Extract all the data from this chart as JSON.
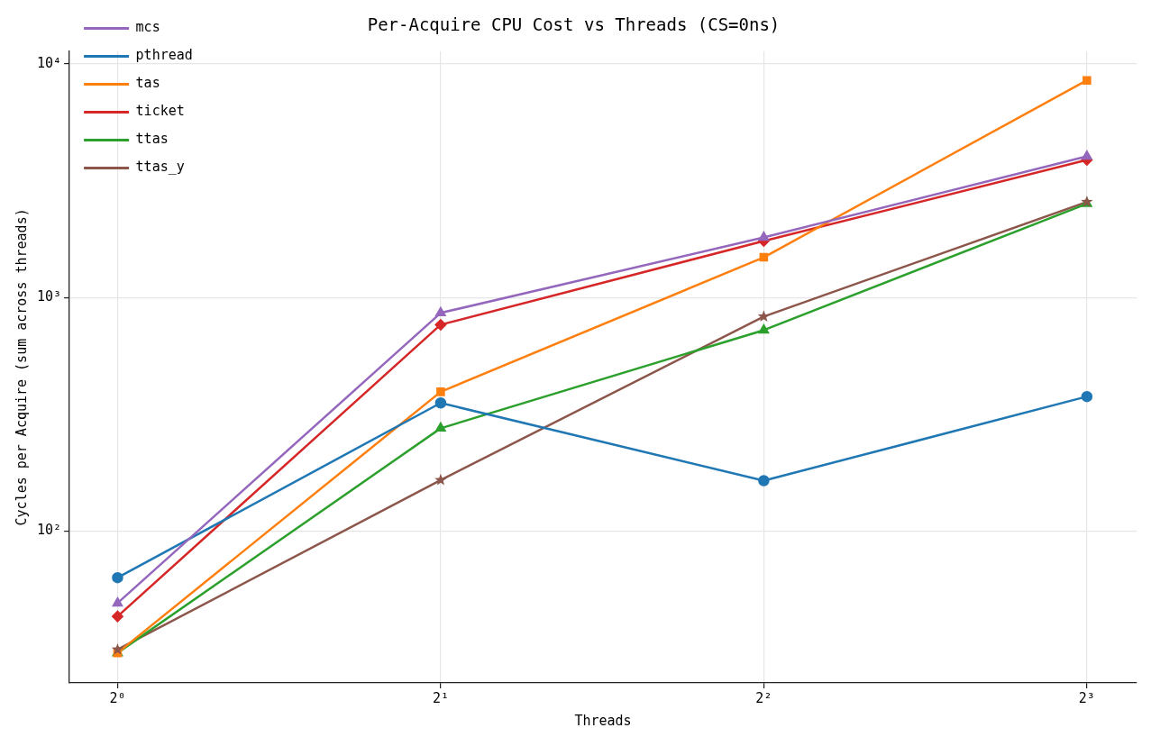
{
  "chart_data": {
    "type": "line",
    "title": "Per-Acquire CPU Cost vs Threads (CS=0ns)",
    "xlabel": "Threads",
    "ylabel": "Cycles per Acquire (sum across threads)",
    "x": [
      1,
      2,
      4,
      8
    ],
    "series": [
      {
        "name": "mcs",
        "color": "#9467bd",
        "marker": "triangle",
        "values": [
          49,
          858,
          1808,
          4020
        ]
      },
      {
        "name": "pthread",
        "color": "#1f77b4",
        "marker": "circle",
        "values": [
          63,
          353,
          164,
          376
        ]
      },
      {
        "name": "tas",
        "color": "#ff7f0e",
        "marker": "square",
        "values": [
          30,
          394,
          1486,
          8510
        ]
      },
      {
        "name": "ticket",
        "color": "#d62728",
        "marker": "diamond",
        "values": [
          43,
          764,
          1745,
          3880
        ]
      },
      {
        "name": "ttas",
        "color": "#2ca02c",
        "marker": "triangle",
        "values": [
          30,
          275,
          724,
          2520
        ]
      },
      {
        "name": "ttas_y",
        "color": "#8c564b",
        "marker": "star",
        "values": [
          31,
          165,
          828,
          2565
        ]
      }
    ],
    "log": "xy",
    "xlim": [
      0.902,
      8.9
    ],
    "ylim": [
      22.3,
      11350
    ],
    "xticks": [
      {
        "value": 1,
        "label": "2⁰"
      },
      {
        "value": 2,
        "label": "2¹"
      },
      {
        "value": 4,
        "label": "2²"
      },
      {
        "value": 8,
        "label": "2³"
      }
    ],
    "yticks": [
      {
        "value": 100,
        "label": "10²"
      },
      {
        "value": 1000,
        "label": "10³"
      },
      {
        "value": 10000,
        "label": "10⁴"
      }
    ],
    "grid": true,
    "legend": "top left",
    "line_style": "solid"
  }
}
